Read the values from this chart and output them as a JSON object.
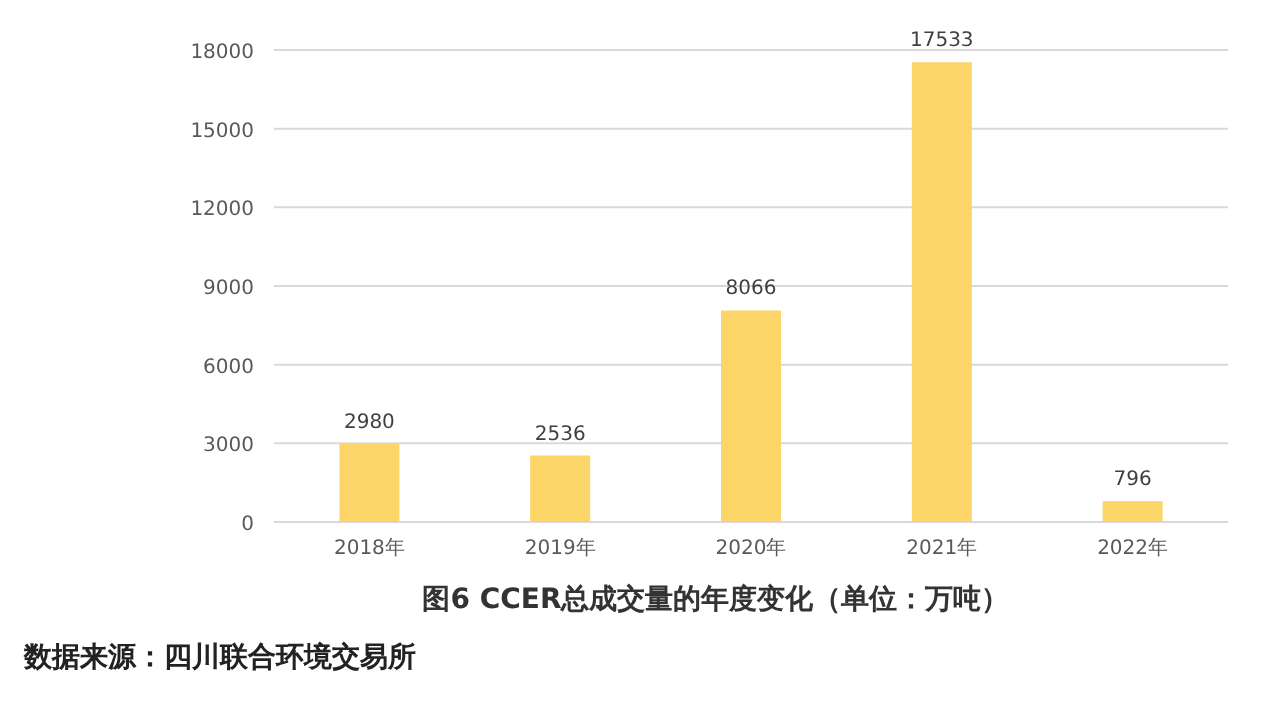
{
  "chart_data": {
    "type": "bar",
    "title": "图6 CCER总成交量的年度变化（单位：万吨）",
    "categories": [
      "2018年",
      "2019年",
      "2020年",
      "2021年",
      "2022年"
    ],
    "values": [
      2980,
      2536,
      8066,
      17533,
      796
    ],
    "color": "#fcd569",
    "ylim": [
      0,
      18000
    ],
    "yticks": [
      0,
      3000,
      6000,
      9000,
      12000,
      15000,
      18000
    ],
    "grid": "y",
    "data_labels": true,
    "annotations": [
      "数据来源：四川联合环境交易所"
    ]
  }
}
